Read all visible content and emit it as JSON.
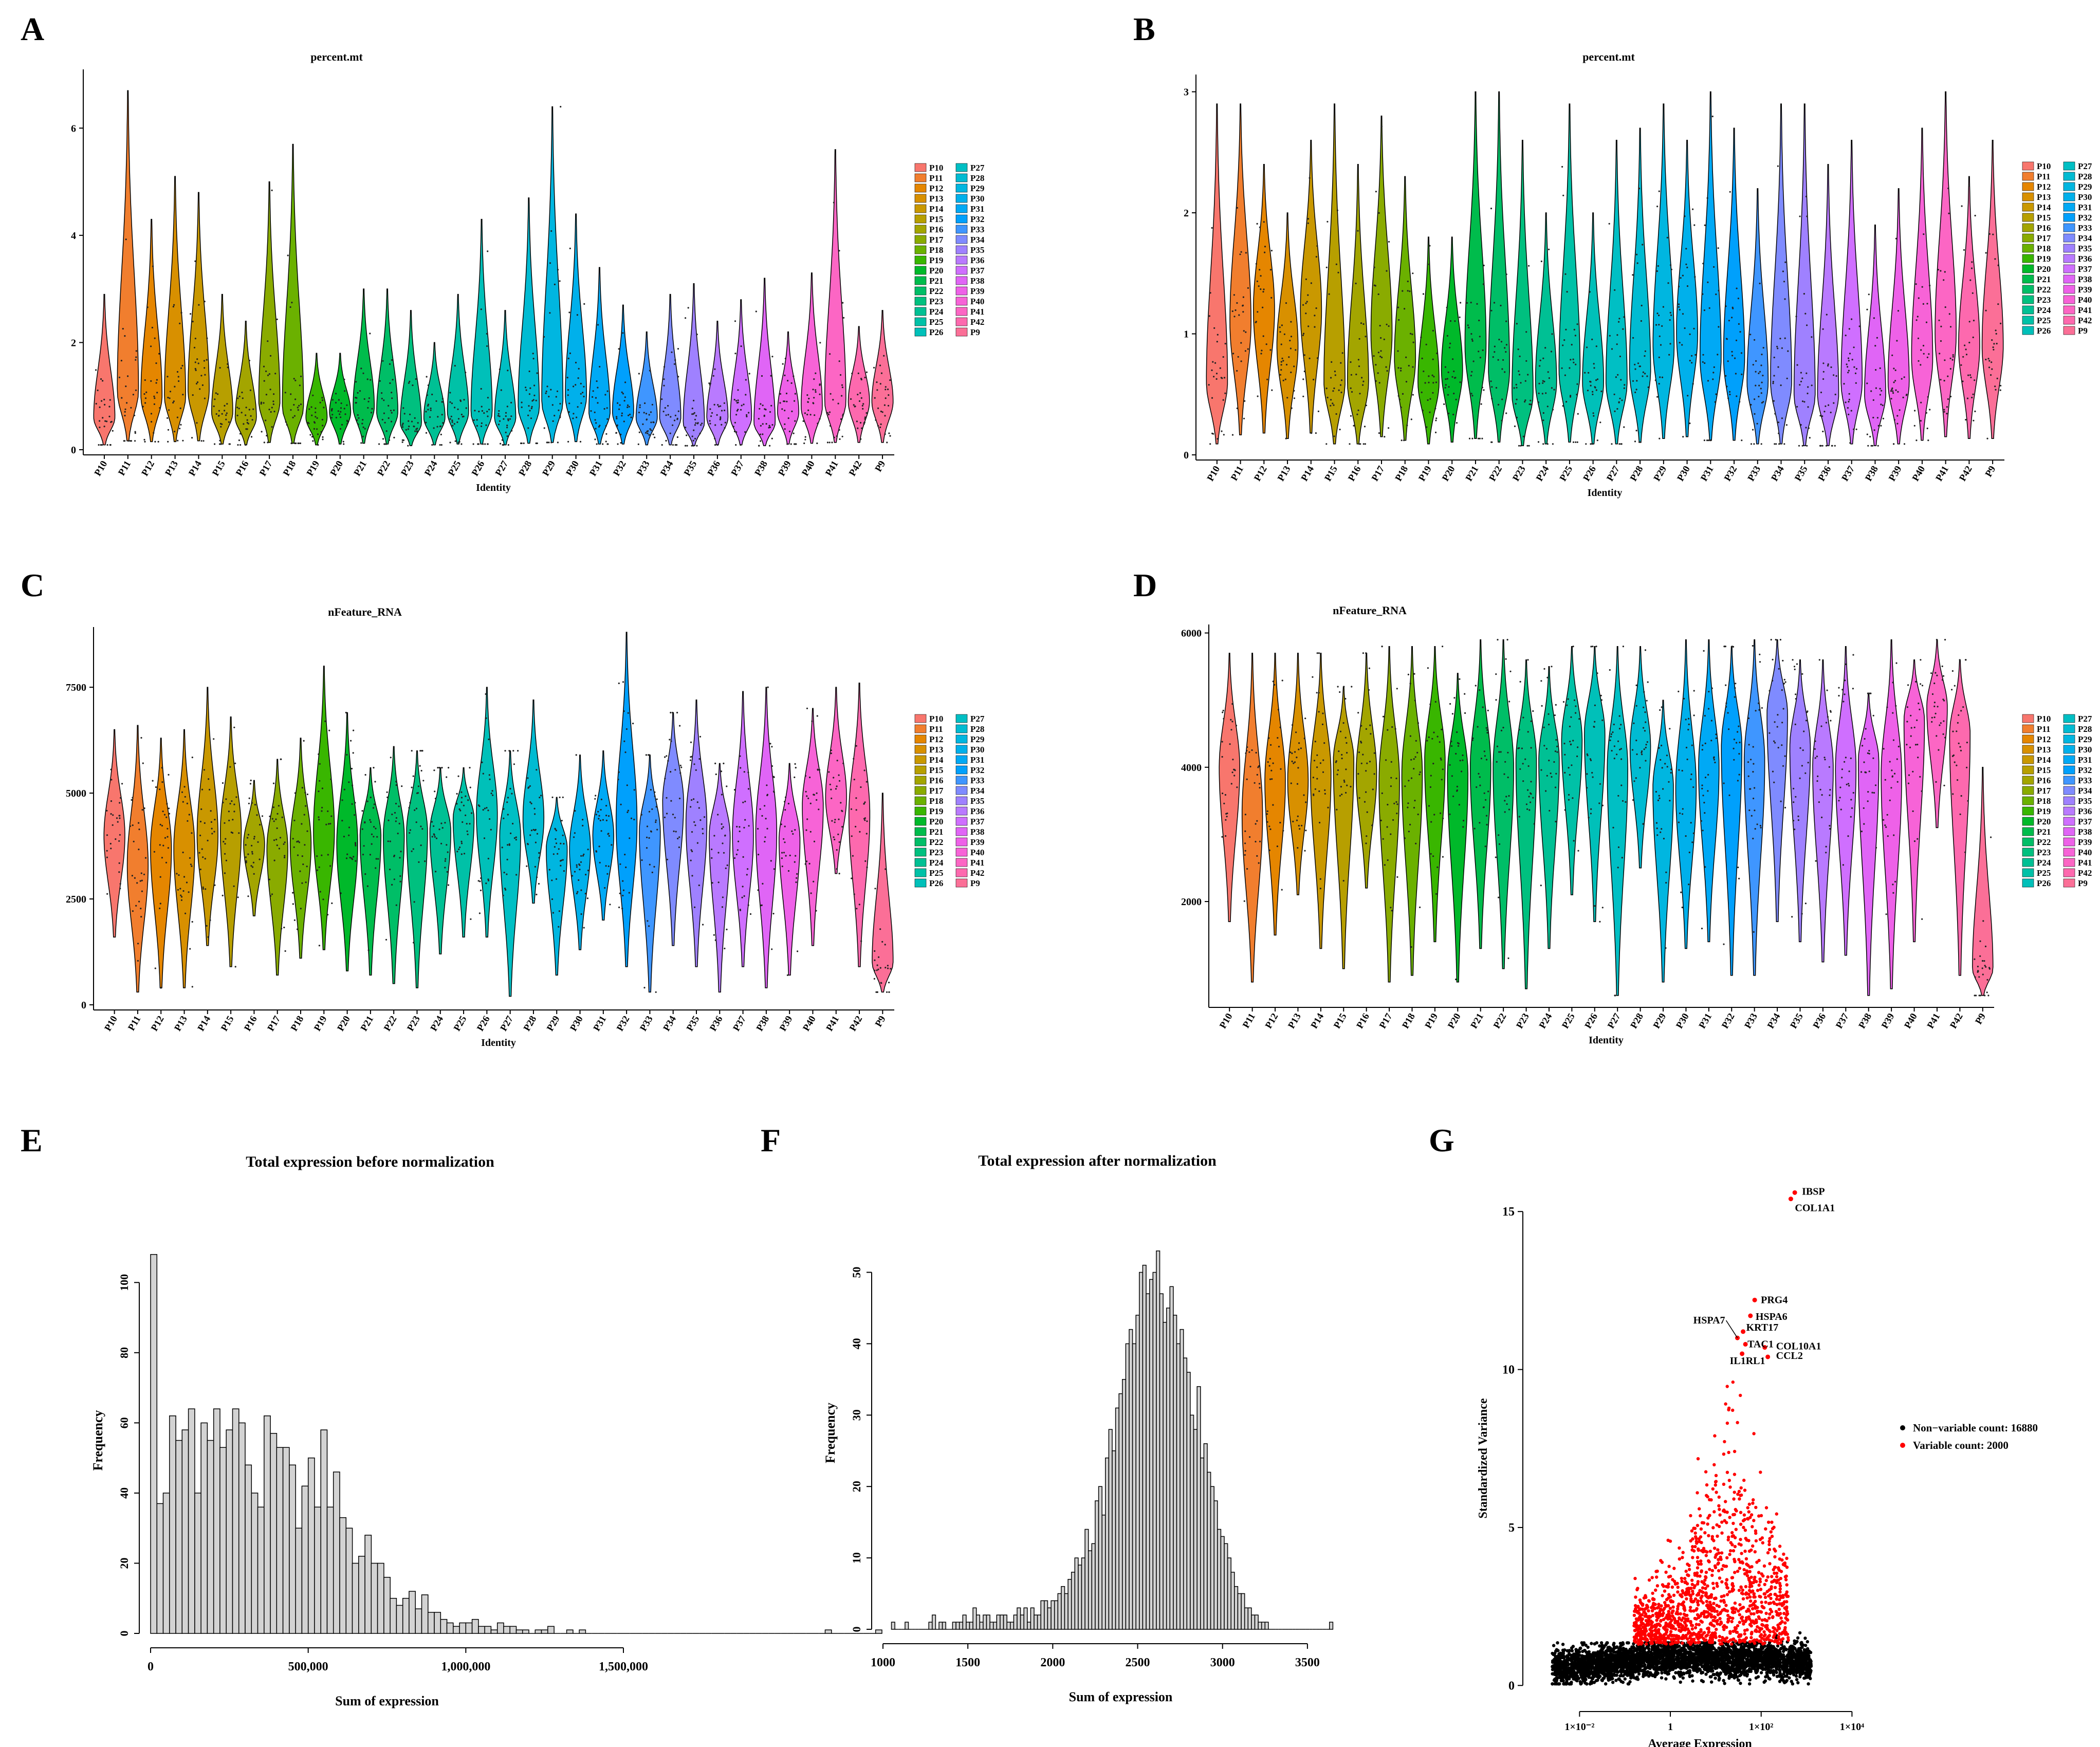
{
  "panels": {
    "A": {
      "letter": "A",
      "title": "percent.mt",
      "xlabel": "Identity"
    },
    "B": {
      "letter": "B",
      "title": "percent.mt",
      "xlabel": "Identity"
    },
    "C": {
      "letter": "C",
      "title": "nFeature_RNA",
      "xlabel": "Identity"
    },
    "D": {
      "letter": "D",
      "title": "nFeature_RNA",
      "xlabel": "Identity"
    },
    "E": {
      "letter": "E",
      "title": "Total expression before normalization",
      "xlabel": "Sum of expression",
      "ylabel": "Frequency"
    },
    "F": {
      "letter": "F",
      "title": "Total expression after normalization",
      "xlabel": "Sum of expression",
      "ylabel": "Frequency"
    },
    "G": {
      "letter": "G",
      "xlabel": "Average Expression",
      "ylabel": "Standardized Variance"
    }
  },
  "chart_data": [
    {
      "id": "A",
      "type": "violin",
      "title": "percent.mt",
      "xlabel": "Identity",
      "ylabel": "",
      "categories": [
        "P10",
        "P11",
        "P12",
        "P13",
        "P14",
        "P15",
        "P16",
        "P17",
        "P18",
        "P19",
        "P20",
        "P21",
        "P22",
        "P23",
        "P24",
        "P25",
        "P26",
        "P27",
        "P28",
        "P29",
        "P30",
        "P31",
        "P32",
        "P33",
        "P34",
        "P35",
        "P36",
        "P37",
        "P38",
        "P39",
        "P40",
        "P41",
        "P42",
        "P9"
      ],
      "ylim": [
        0,
        7
      ],
      "yticks": [
        0,
        2,
        4,
        6
      ],
      "ytick_labels": [
        "0",
        "2",
        "4",
        "6"
      ],
      "medians": [
        0.6,
        1.1,
        1.0,
        1.0,
        1.1,
        0.7,
        0.6,
        0.9,
        0.8,
        0.6,
        0.7,
        0.8,
        0.7,
        0.5,
        0.6,
        0.7,
        0.7,
        0.6,
        0.8,
        0.9,
        1.0,
        0.7,
        0.7,
        0.6,
        0.6,
        0.5,
        0.6,
        0.6,
        0.5,
        0.7,
        0.8,
        0.9,
        0.9,
        0.9
      ],
      "max": [
        2.9,
        6.7,
        4.3,
        5.1,
        4.8,
        2.9,
        2.4,
        5.0,
        5.7,
        1.8,
        1.8,
        3.0,
        3.0,
        2.6,
        2.0,
        2.9,
        4.3,
        2.6,
        4.7,
        6.4,
        4.4,
        3.4,
        2.7,
        2.2,
        2.9,
        3.1,
        2.4,
        2.8,
        3.2,
        2.2,
        3.3,
        5.6,
        2.3,
        2.6
      ],
      "legend": {
        "col1": [
          "P10",
          "P11",
          "P12",
          "P13",
          "P14",
          "P15",
          "P16",
          "P17",
          "P18",
          "P19",
          "P20",
          "P21",
          "P22",
          "P23",
          "P24",
          "P25",
          "P26"
        ],
        "col2": [
          "P27",
          "P28",
          "P29",
          "P30",
          "P31",
          "P32",
          "P33",
          "P34",
          "P35",
          "P36",
          "P37",
          "P38",
          "P39",
          "P40",
          "P41",
          "P42",
          "P9"
        ]
      }
    },
    {
      "id": "B",
      "type": "violin",
      "title": "percent.mt",
      "xlabel": "Identity",
      "ylabel": "",
      "categories": [
        "P10",
        "P11",
        "P12",
        "P13",
        "P14",
        "P15",
        "P16",
        "P17",
        "P18",
        "P19",
        "P20",
        "P21",
        "P22",
        "P23",
        "P24",
        "P25",
        "P26",
        "P27",
        "P28",
        "P29",
        "P30",
        "P31",
        "P32",
        "P33",
        "P34",
        "P35",
        "P36",
        "P37",
        "P38",
        "P39",
        "P40",
        "P41",
        "P42",
        "P9"
      ],
      "ylim": [
        0,
        3.1
      ],
      "yticks": [
        0,
        1,
        2,
        3
      ],
      "ytick_labels": [
        "0",
        "1",
        "2",
        "3"
      ],
      "medians": [
        0.6,
        1.1,
        1.2,
        0.9,
        1.2,
        0.6,
        0.6,
        1.0,
        0.8,
        0.6,
        0.7,
        0.9,
        0.7,
        0.5,
        0.6,
        0.7,
        0.6,
        0.6,
        0.7,
        0.9,
        1.0,
        0.8,
        0.8,
        0.6,
        0.6,
        0.5,
        0.5,
        0.6,
        0.5,
        0.6,
        0.8,
        1.0,
        0.9,
        0.9
      ],
      "max": [
        2.9,
        2.9,
        2.4,
        2.0,
        2.6,
        2.9,
        2.4,
        2.8,
        2.3,
        1.8,
        1.8,
        3.0,
        3.0,
        2.6,
        2.0,
        2.9,
        2.0,
        2.6,
        2.7,
        2.9,
        2.6,
        3.0,
        2.7,
        2.2,
        2.9,
        2.9,
        2.4,
        2.6,
        1.9,
        2.2,
        2.7,
        3.0,
        2.3,
        2.6
      ],
      "legend": {
        "col1": [
          "P10",
          "P11",
          "P12",
          "P13",
          "P14",
          "P15",
          "P16",
          "P17",
          "P18",
          "P19",
          "P20",
          "P21",
          "P22",
          "P23",
          "P24",
          "P25",
          "P26"
        ],
        "col2": [
          "P27",
          "P28",
          "P29",
          "P30",
          "P31",
          "P32",
          "P33",
          "P34",
          "P35",
          "P36",
          "P37",
          "P38",
          "P39",
          "P40",
          "P41",
          "P42",
          "P9"
        ]
      }
    },
    {
      "id": "C",
      "type": "violin",
      "title": "nFeature_RNA",
      "xlabel": "Identity",
      "ylabel": "",
      "categories": [
        "P10",
        "P11",
        "P12",
        "P13",
        "P14",
        "P15",
        "P16",
        "P17",
        "P18",
        "P19",
        "P20",
        "P21",
        "P22",
        "P23",
        "P24",
        "P25",
        "P26",
        "P27",
        "P28",
        "P29",
        "P30",
        "P31",
        "P32",
        "P33",
        "P34",
        "P35",
        "P36",
        "P37",
        "P38",
        "P39",
        "P40",
        "P41",
        "P42",
        "P9"
      ],
      "ylim": [
        0,
        8800
      ],
      "yticks": [
        0,
        2500,
        5000,
        7500
      ],
      "ytick_labels": [
        "0",
        "2500",
        "5000",
        "7500"
      ],
      "medians": [
        4000,
        3300,
        3700,
        3700,
        4000,
        4100,
        3800,
        3700,
        3800,
        4100,
        3800,
        4000,
        4000,
        4100,
        4100,
        4400,
        4500,
        4000,
        4400,
        3700,
        3700,
        4000,
        4300,
        4100,
        4800,
        4300,
        4000,
        4000,
        4100,
        3900,
        4700,
        4900,
        4500,
        1000
      ],
      "min": [
        1600,
        300,
        400,
        400,
        1400,
        900,
        2100,
        700,
        1100,
        1300,
        800,
        700,
        500,
        400,
        1200,
        1600,
        1600,
        200,
        2400,
        700,
        1300,
        2000,
        900,
        300,
        1400,
        900,
        300,
        900,
        400,
        700,
        1400,
        3100,
        900,
        300
      ],
      "max": [
        6500,
        6600,
        6300,
        6500,
        7500,
        6800,
        5300,
        5800,
        6300,
        8000,
        6900,
        5600,
        6100,
        6000,
        5600,
        5600,
        7500,
        6000,
        7200,
        4900,
        5900,
        6000,
        8800,
        5900,
        6900,
        7200,
        5700,
        7400,
        7500,
        5700,
        7000,
        7500,
        7600,
        5000
      ],
      "legend": {
        "col1": [
          "P10",
          "P11",
          "P12",
          "P13",
          "P14",
          "P15",
          "P16",
          "P17",
          "P18",
          "P19",
          "P20",
          "P21",
          "P22",
          "P23",
          "P24",
          "P25",
          "P26"
        ],
        "col2": [
          "P27",
          "P28",
          "P29",
          "P30",
          "P31",
          "P32",
          "P33",
          "P34",
          "P35",
          "P36",
          "P37",
          "P38",
          "P39",
          "P40",
          "P41",
          "P42",
          "P9"
        ]
      }
    },
    {
      "id": "D",
      "type": "violin",
      "title": "nFeature_RNA",
      "xlabel": "Identity",
      "ylabel": "",
      "categories": [
        "P10",
        "P11",
        "P12",
        "P13",
        "P14",
        "P15",
        "P16",
        "P17",
        "P18",
        "P19",
        "P20",
        "P21",
        "P22",
        "P23",
        "P24",
        "P25",
        "P26",
        "P27",
        "P28",
        "P29",
        "P30",
        "P31",
        "P32",
        "P33",
        "P34",
        "P35",
        "P36",
        "P37",
        "P38",
        "P39",
        "P40",
        "P41",
        "P42",
        "P9"
      ],
      "ylim": [
        500,
        6050
      ],
      "yticks": [
        2000,
        4000,
        6000
      ],
      "ytick_labels": [
        "2000",
        "4000",
        "6000"
      ],
      "medians": [
        4000,
        3300,
        3800,
        3800,
        3900,
        4100,
        3900,
        3800,
        3900,
        4100,
        3900,
        4000,
        4000,
        4100,
        4100,
        4400,
        4500,
        4000,
        4300,
        3700,
        3700,
        4000,
        4300,
        4100,
        4800,
        4300,
        4000,
        4000,
        4100,
        3900,
        4700,
        4900,
        4500,
        1000
      ],
      "min": [
        1700,
        800,
        1500,
        2100,
        1300,
        1000,
        2200,
        800,
        900,
        1400,
        800,
        1300,
        1000,
        700,
        1300,
        2100,
        1700,
        600,
        2500,
        800,
        1300,
        1400,
        900,
        900,
        1700,
        1400,
        1100,
        1200,
        600,
        700,
        1400,
        3100,
        900,
        600
      ],
      "max": [
        5700,
        5700,
        5700,
        5700,
        5700,
        5200,
        5700,
        5800,
        5800,
        5800,
        5400,
        5900,
        5900,
        5600,
        5500,
        5800,
        5800,
        5800,
        5800,
        5000,
        5900,
        5900,
        5800,
        5900,
        5900,
        5600,
        5600,
        5800,
        5100,
        5900,
        5600,
        5900,
        5600,
        4000
      ],
      "legend": {
        "col1": [
          "P10",
          "P11",
          "P12",
          "P13",
          "P14",
          "P15",
          "P16",
          "P17",
          "P18",
          "P19",
          "P20",
          "P21",
          "P22",
          "P23",
          "P24",
          "P25",
          "P26"
        ],
        "col2": [
          "P27",
          "P28",
          "P29",
          "P30",
          "P31",
          "P32",
          "P33",
          "P34",
          "P35",
          "P36",
          "P37",
          "P38",
          "P39",
          "P40",
          "P41",
          "P42",
          "P9"
        ]
      }
    },
    {
      "id": "E",
      "type": "bar",
      "title": "Total expression before normalization",
      "xlabel": "Sum of expression",
      "ylabel": "Frequency",
      "xlim": [
        0,
        1500000
      ],
      "ylim": [
        0,
        110
      ],
      "xticks": [
        0,
        500000,
        1000000,
        1500000
      ],
      "xtick_labels": [
        "0",
        "500,000",
        "1,000,000",
        "1,500,000"
      ],
      "yticks": [
        0,
        20,
        40,
        60,
        80,
        100
      ],
      "ytick_labels": [
        "0",
        "20",
        "40",
        "60",
        "80",
        "100"
      ],
      "bin_width": 20000,
      "values": [
        108,
        37,
        40,
        62,
        55,
        58,
        64,
        40,
        60,
        55,
        64,
        53,
        58,
        64,
        60,
        48,
        40,
        36,
        62,
        57,
        53,
        53,
        48,
        30,
        42,
        50,
        36,
        58,
        36,
        46,
        33,
        30,
        20,
        22,
        28,
        20,
        20,
        16,
        10,
        8,
        10,
        12,
        7,
        11,
        6,
        6,
        4,
        3,
        2,
        3,
        3,
        4,
        2,
        2,
        1,
        3,
        2,
        2,
        1,
        1,
        0,
        1,
        1,
        2,
        0,
        0,
        1,
        0,
        1,
        0,
        0,
        0,
        0,
        0,
        0,
        0,
        0,
        0,
        0,
        0,
        0,
        0,
        0,
        0,
        0,
        0,
        0,
        0,
        0,
        0,
        0,
        0,
        0,
        0,
        0,
        0,
        0,
        0,
        0,
        0,
        0,
        0,
        0,
        0,
        0,
        0,
        0,
        1,
        0,
        0,
        0,
        0,
        0,
        0,
        0,
        1
      ],
      "marks_note": "histogram bars drawn from values"
    },
    {
      "id": "F",
      "type": "bar",
      "title": "Total expression after normalization",
      "xlabel": "Sum of expression",
      "ylabel": "Frequency",
      "xlim": [
        1000,
        3800
      ],
      "ylim": [
        0,
        55
      ],
      "xticks": [
        1000,
        1500,
        2000,
        2500,
        3000,
        3500
      ],
      "xtick_labels": [
        "1000",
        "1500",
        "2000",
        "2500",
        "3000",
        "3500"
      ],
      "yticks": [
        0,
        10,
        20,
        30,
        40,
        50
      ],
      "ytick_labels": [
        "0",
        "10",
        "20",
        "30",
        "40",
        "50"
      ],
      "bin_start": 1050,
      "bin_width": 20,
      "values": [
        1,
        0,
        0,
        0,
        1,
        0,
        0,
        0,
        0,
        0,
        0,
        1,
        2,
        0,
        1,
        1,
        0,
        0,
        1,
        1,
        1,
        2,
        1,
        1,
        3,
        2,
        1,
        2,
        2,
        1,
        1,
        2,
        2,
        2,
        1,
        1,
        2,
        3,
        2,
        3,
        1,
        3,
        2,
        2,
        4,
        4,
        3,
        4,
        4,
        5,
        6,
        5,
        7,
        8,
        10,
        9,
        10,
        14,
        11,
        12,
        18,
        20,
        16,
        24,
        28,
        25,
        31,
        33,
        35,
        40,
        42,
        40,
        44,
        50,
        51,
        47,
        49,
        50,
        53,
        47,
        43,
        45,
        48,
        44,
        40,
        42,
        38,
        36,
        30,
        28,
        34,
        24,
        26,
        22,
        20,
        18,
        14,
        13,
        12,
        10,
        8,
        6,
        5,
        5,
        3,
        3,
        2,
        2,
        1,
        1,
        1,
        0,
        0,
        0,
        0,
        0,
        0,
        0,
        0,
        0,
        0,
        0,
        0,
        0,
        0,
        0,
        0,
        0,
        0,
        1
      ],
      "marks_note": "histogram bars drawn from values"
    },
    {
      "id": "G",
      "type": "scatter",
      "title": "",
      "xlabel": "Average Expression",
      "ylabel": "Standardized Variance",
      "xscale": "log10",
      "xlim": [
        0.001,
        20000
      ],
      "ylim": [
        -0.5,
        16.5
      ],
      "xticks": [
        0.01,
        1,
        100,
        10000
      ],
      "xtick_labels": [
        "1×10⁻²",
        "1",
        "1×10²",
        "1×10⁴"
      ],
      "yticks": [
        0,
        5,
        10,
        15
      ],
      "ytick_labels": [
        "0",
        "5",
        "10",
        "15"
      ],
      "legend": [
        {
          "label": "Non−variable count: 16880",
          "color": "#000000"
        },
        {
          "label": "Variable count: 2000",
          "color": "#ff0000"
        }
      ],
      "labeled_genes": [
        {
          "gene": "IBSP",
          "x": 550,
          "y": 15.6
        },
        {
          "gene": "COL1A1",
          "x": 450,
          "y": 15.4
        },
        {
          "gene": "PRG4",
          "x": 72,
          "y": 12.2
        },
        {
          "gene": "HSPA6",
          "x": 58,
          "y": 11.7
        },
        {
          "gene": "KRT17",
          "x": 40,
          "y": 11.2
        },
        {
          "gene": "HSPA7",
          "x": 30,
          "y": 11.0
        },
        {
          "gene": "TAC1",
          "x": 45,
          "y": 10.8
        },
        {
          "gene": "COL10A1",
          "x": 120,
          "y": 10.7
        },
        {
          "gene": "CCL2",
          "x": 140,
          "y": 10.4
        },
        {
          "gene": "IL1RL1",
          "x": 38,
          "y": 10.5
        }
      ]
    }
  ],
  "colors": {
    "violin_palette": [
      "#f8766d",
      "#f17e2e",
      "#e58600",
      "#d89000",
      "#c99800",
      "#b79f00",
      "#a3a500",
      "#8aab00",
      "#6bb100",
      "#39b600",
      "#00b92a",
      "#00bc4c",
      "#00be67",
      "#00c07f",
      "#00c094",
      "#00c1a7",
      "#00c0b9",
      "#00bfc4",
      "#00bbd2",
      "#00b6e0",
      "#00b0eb",
      "#00a9f5",
      "#00a0fc",
      "#3f96ff",
      "#7f8bff",
      "#9f81ff",
      "#b97aff",
      "#cf6fff",
      "#e065f6",
      "#ee61e8",
      "#f763d7",
      "#fc66c4",
      "#fd69ae",
      "#fb6f97"
    ],
    "hist_fill": "#d3d3d3",
    "variable": "#ff0000",
    "nonvariable": "#000000"
  }
}
